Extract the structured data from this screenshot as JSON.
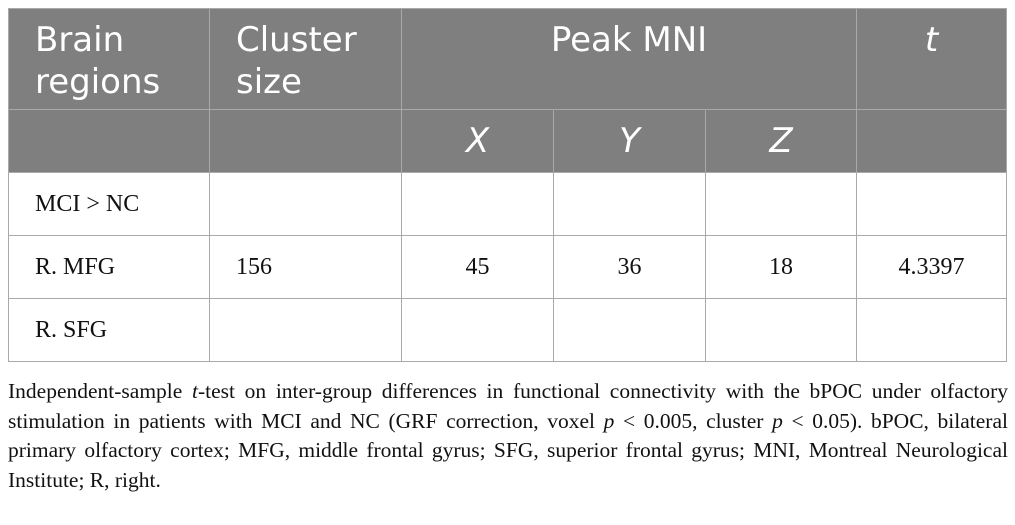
{
  "table": {
    "header": {
      "brain_regions": "Brain regions",
      "cluster_size": "Cluster size",
      "peak_mni": "Peak MNI",
      "t": "t",
      "x": "X",
      "y": "Y",
      "z": "Z"
    },
    "rows": [
      {
        "region": "MCI > NC",
        "cluster": "",
        "x": "",
        "y": "",
        "z": "",
        "t": ""
      },
      {
        "region": "R. MFG",
        "cluster": "156",
        "x": "45",
        "y": "36",
        "z": "18",
        "t": "4.3397"
      },
      {
        "region": "R. SFG",
        "cluster": "",
        "x": "",
        "y": "",
        "z": "",
        "t": ""
      }
    ]
  },
  "caption": {
    "p1": "Independent-sample ",
    "p1_italic": "t",
    "p2": "-test on inter-group differences in functional connectivity with the bPOC under olfactory stimulation in patients with MCI and NC (GRF correction, voxel ",
    "p2_italic": "p",
    "p3": " < 0.005, cluster ",
    "p3_italic": "p",
    "p4": " < 0.05). bPOC, bilateral primary olfactory cortex; MFG, middle frontal gyrus; SFG, superior frontal gyrus; MNI, Montreal Neurological Institute; R, right."
  }
}
